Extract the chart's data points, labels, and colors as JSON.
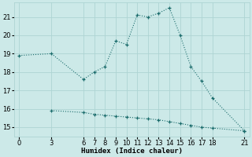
{
  "xlabel": "Humidex (Indice chaleur)",
  "ylabel": "",
  "bg_color": "#cce9e8",
  "grid_color": "#aed4d3",
  "line_color": "#1a6b6b",
  "upper_x": [
    0,
    3,
    6,
    7,
    8,
    9,
    10,
    11,
    12,
    13,
    14,
    15,
    16,
    17,
    18,
    21
  ],
  "upper_y": [
    18.9,
    19.0,
    17.6,
    18.0,
    18.3,
    19.7,
    19.5,
    21.1,
    21.0,
    21.2,
    21.5,
    20.0,
    18.3,
    17.5,
    16.6,
    14.8
  ],
  "lower_x": [
    3,
    6,
    7,
    8,
    9,
    10,
    11,
    12,
    13,
    14,
    15,
    16,
    17,
    18,
    21
  ],
  "lower_y": [
    15.9,
    15.8,
    15.7,
    15.65,
    15.6,
    15.55,
    15.5,
    15.45,
    15.4,
    15.3,
    15.2,
    15.1,
    15.0,
    14.95,
    14.8
  ],
  "xticks": [
    0,
    3,
    6,
    7,
    8,
    9,
    10,
    11,
    12,
    13,
    14,
    15,
    16,
    17,
    18,
    21
  ],
  "yticks": [
    15,
    16,
    17,
    18,
    19,
    20,
    21
  ],
  "xlim": [
    -0.5,
    21.5
  ],
  "ylim": [
    14.5,
    21.8
  ],
  "axis_fontsize": 6.5,
  "tick_fontsize": 6.0
}
